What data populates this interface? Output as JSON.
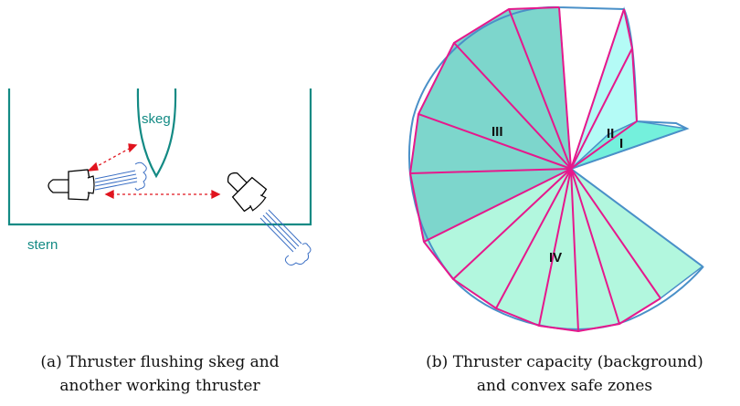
{
  "panel_a": {
    "skeg_label": "skeg",
    "stern_label": "stern",
    "caption_line1": "(a) Thruster flushing skeg and",
    "caption_line2": "another working thruster",
    "colors": {
      "hull": "#138a84",
      "arrow": "#e0141e",
      "flow": "#3b6fc4",
      "outline": "#000000"
    }
  },
  "panel_b": {
    "zones": [
      {
        "id": "I",
        "label": "I",
        "fill": "#74f0dc"
      },
      {
        "id": "II",
        "label": "II",
        "fill": "#b4fbf6"
      },
      {
        "id": "III",
        "label": "III",
        "fill": "#7dd6cc"
      },
      {
        "id": "IV",
        "label": "IV",
        "fill": "#b2f7de"
      }
    ],
    "caption_line1": "(b) Thruster capacity (background)",
    "caption_line2": "and convex safe zones",
    "colors": {
      "boundary": "#4a90c8",
      "rays": "#e6188c"
    }
  }
}
